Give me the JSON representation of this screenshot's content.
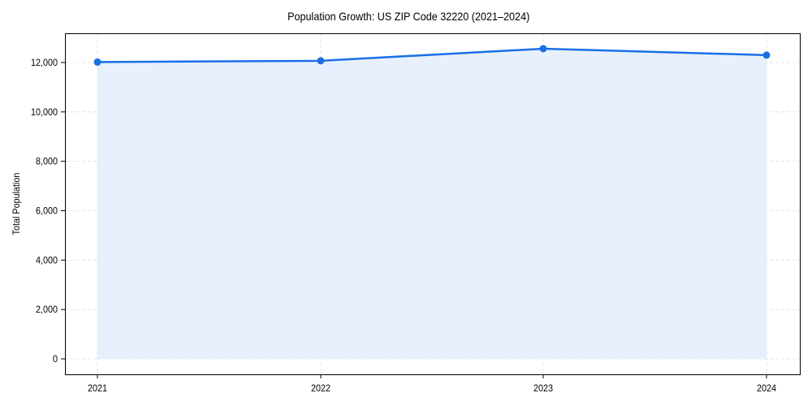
{
  "chart_data": {
    "type": "line",
    "title": "Population Growth: US ZIP Code 32220 (2021–2024)",
    "xlabel": "",
    "ylabel": "Total Population",
    "categories": [
      "2021",
      "2022",
      "2023",
      "2024"
    ],
    "series": [
      {
        "name": "Total Population",
        "values": [
          12020,
          12070,
          12560,
          12300
        ]
      }
    ],
    "ylim": [
      -600,
      13200
    ],
    "yticks": [
      0,
      2000,
      4000,
      6000,
      8000,
      10000,
      12000
    ],
    "ytick_labels": [
      "0",
      "2,000",
      "4,000",
      "6,000",
      "8,000",
      "10,000",
      "12,000"
    ],
    "grid": true,
    "area_fill": true,
    "legend": "none"
  },
  "colors": {
    "line": "#1a6fe6",
    "fill": "#e4eefc",
    "grid": "#d9dde3"
  }
}
